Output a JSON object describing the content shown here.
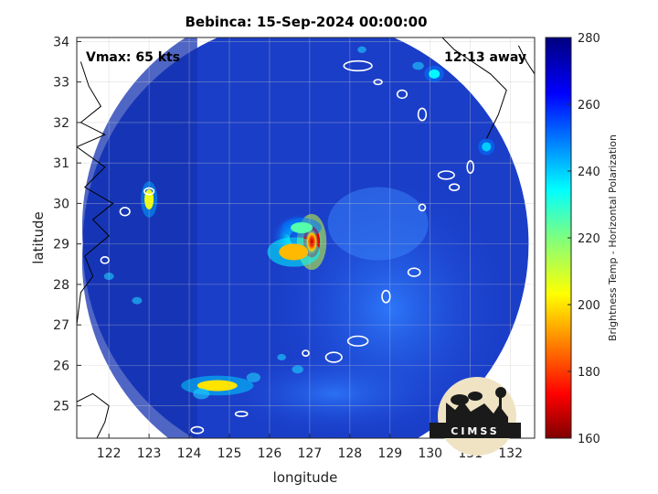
{
  "chart_data": {
    "type": "heatmap",
    "title": "Bebinca: 15-Sep-2024 00:00:00",
    "xlabel": "longitude",
    "ylabel": "latitude",
    "xlim": [
      121.2,
      132.6
    ],
    "ylim": [
      24.2,
      34.1
    ],
    "x_ticks": [
      122,
      123,
      124,
      125,
      126,
      127,
      128,
      129,
      130,
      131,
      132
    ],
    "y_ticks": [
      25,
      26,
      27,
      28,
      29,
      30,
      31,
      32,
      33,
      34
    ],
    "grid": true,
    "colorbar": {
      "label": "Brightness Temp - Horizontal Polarization",
      "range": [
        160,
        280
      ],
      "ticks": [
        160,
        180,
        200,
        220,
        240,
        260,
        280
      ],
      "colormap": "jet"
    },
    "annotations": {
      "vmax": "Vmax: 65 kts",
      "time_offset": "12:13 away"
    },
    "storm_center": {
      "lon": 127.0,
      "lat": 29.0
    },
    "swath": {
      "center_lon": 126.9,
      "center_lat": 29.0,
      "radius_deg": 5.55
    },
    "features": [
      {
        "name": "eyewall-core",
        "lon": 127.05,
        "lat": 29.05,
        "tb": 170
      },
      {
        "name": "inner-band-west",
        "lon": 126.6,
        "lat": 28.8,
        "tb": 195
      },
      {
        "name": "inner-band-north",
        "lon": 126.8,
        "lat": 29.4,
        "tb": 225
      },
      {
        "name": "rainband-south",
        "lon": 124.7,
        "lat": 25.5,
        "tb": 200
      },
      {
        "name": "convection-west",
        "lon": 123.0,
        "lat": 30.1,
        "tb": 205
      },
      {
        "name": "convection-northeast",
        "lon": 130.1,
        "lat": 33.2,
        "tb": 235
      },
      {
        "name": "convection-east",
        "lon": 131.4,
        "lat": 31.4,
        "tb": 240
      }
    ]
  },
  "logo": {
    "text": "CIMSS"
  },
  "colors": {
    "background_swath": "#1a3ec8",
    "outside": "#ffffff",
    "coastline": "#000000"
  }
}
